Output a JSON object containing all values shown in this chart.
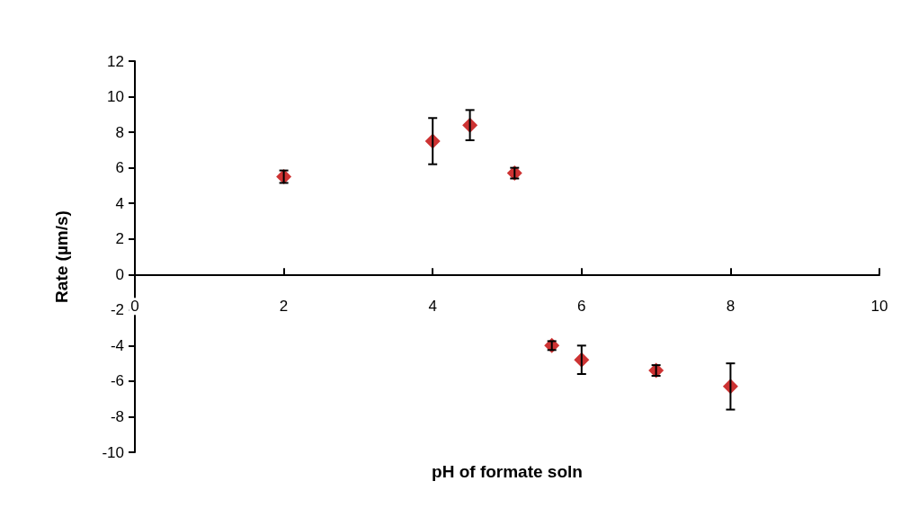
{
  "chart_data": {
    "type": "scatter",
    "xlabel": "pH of formate soln",
    "ylabel": "Rate (µm/s)",
    "x": [
      2,
      4,
      4.5,
      5.1,
      5.6,
      6,
      7,
      8
    ],
    "values": [
      5.5,
      7.5,
      8.4,
      5.7,
      -4.0,
      -4.8,
      -5.4,
      -6.3
    ],
    "errors": [
      0.35,
      1.3,
      0.85,
      0.3,
      0.25,
      0.8,
      0.3,
      1.3
    ],
    "color": "#c00000",
    "marker": "diamond",
    "xlim": [
      0,
      10
    ],
    "xticks": [
      0,
      2,
      4,
      6,
      8,
      10
    ],
    "ylim": [
      -10,
      12
    ],
    "yticks": [
      -10,
      -8,
      -6,
      -4,
      -2,
      0,
      2,
      4,
      6,
      8,
      10,
      12
    ]
  }
}
